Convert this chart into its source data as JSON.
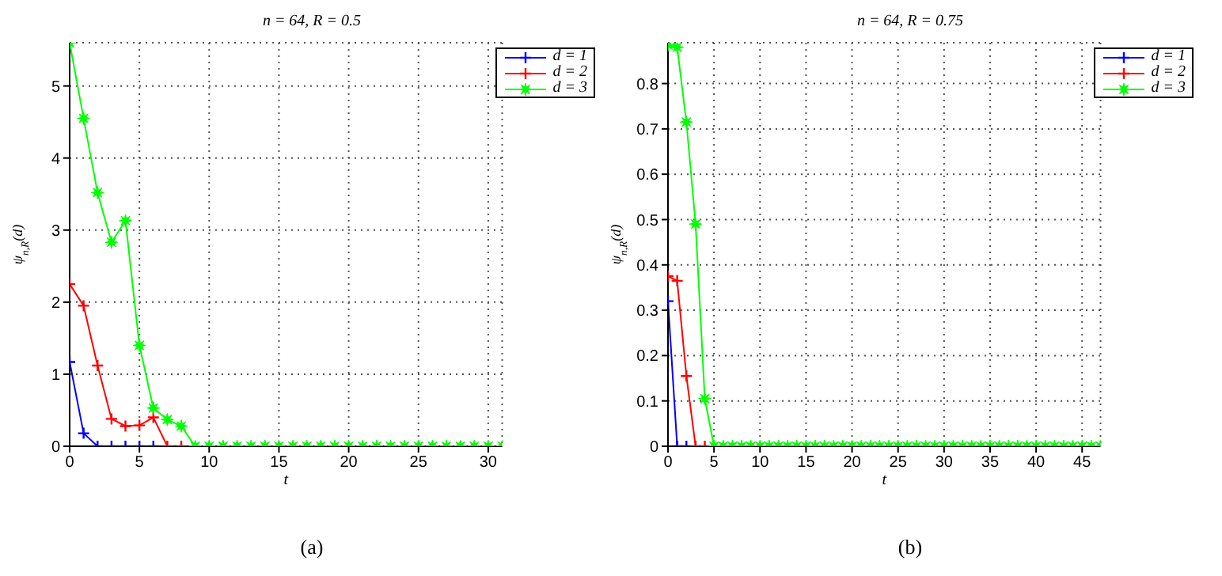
{
  "chart_data": [
    {
      "type": "line",
      "title": "n = 64, R = 0.5",
      "xlabel": "t",
      "ylabel": "ψ$_{n,R}$(d)",
      "x": [
        0,
        1,
        2,
        3,
        4,
        5,
        6,
        7,
        8,
        9,
        10,
        11,
        12,
        13,
        14,
        15,
        16,
        17,
        18,
        19,
        20,
        21,
        22,
        23,
        24,
        25,
        26,
        27,
        28,
        29,
        30,
        31
      ],
      "series": [
        {
          "name": "d = 1",
          "color": "#0000ff",
          "marker": "cross",
          "values": [
            1.17,
            0.18,
            0,
            0,
            0,
            0,
            0,
            null,
            null,
            null,
            null,
            null,
            null,
            null,
            null,
            null,
            null,
            null,
            null,
            null,
            null,
            null,
            null,
            null,
            null,
            null,
            null,
            null,
            null,
            null,
            null,
            null
          ]
        },
        {
          "name": "d = 2",
          "color": "#ff0000",
          "marker": "cross",
          "values": [
            2.25,
            1.95,
            1.12,
            0.38,
            0.28,
            0.29,
            0.4,
            0,
            0,
            null,
            null,
            null,
            null,
            null,
            null,
            null,
            null,
            null,
            null,
            null,
            null,
            null,
            null,
            null,
            null,
            null,
            null,
            null,
            null,
            null,
            null,
            null
          ]
        },
        {
          "name": "d = 3",
          "color": "#00ff00",
          "marker": "star",
          "values": [
            5.6,
            4.55,
            3.52,
            2.83,
            3.13,
            1.4,
            0.53,
            0.37,
            0.28,
            0,
            0,
            0,
            0,
            0,
            0,
            0,
            0,
            0,
            0,
            0,
            0,
            0,
            0,
            0,
            0,
            0,
            0,
            0,
            0,
            0,
            0,
            0
          ]
        }
      ],
      "xlim": [
        0,
        31
      ],
      "xticks": [
        0,
        5,
        10,
        15,
        20,
        25,
        30
      ],
      "ylim": [
        0,
        5.6
      ],
      "yticks": [
        0,
        1,
        2,
        3,
        4,
        5
      ],
      "grid": true,
      "legend": "top right",
      "annotations": [
        "(a)"
      ]
    },
    {
      "type": "line",
      "title": "n = 64, R = 0.75",
      "xlabel": "t",
      "ylabel": "ψ$_{n,R}$(d)",
      "x": [
        0,
        1,
        2,
        3,
        4,
        5,
        6,
        7,
        8,
        9,
        10,
        11,
        12,
        13,
        14,
        15,
        16,
        17,
        18,
        19,
        20,
        21,
        22,
        23,
        24,
        25,
        26,
        27,
        28,
        29,
        30,
        31,
        32,
        33,
        34,
        35,
        36,
        37,
        38,
        39,
        40,
        41,
        42,
        43,
        44,
        45,
        46,
        47
      ],
      "series": [
        {
          "name": "d = 1",
          "color": "#0000ff",
          "marker": "cross",
          "values": [
            0.32,
            0,
            0,
            null,
            null,
            null,
            null,
            null,
            null,
            null,
            null,
            null,
            null,
            null,
            null,
            null,
            null,
            null,
            null,
            null,
            null,
            null,
            null,
            null,
            null,
            null,
            null,
            null,
            null,
            null,
            null,
            null,
            null,
            null,
            null,
            null,
            null,
            null,
            null,
            null,
            null,
            null,
            null,
            null,
            null,
            null,
            null,
            null
          ]
        },
        {
          "name": "d = 2",
          "color": "#ff0000",
          "marker": "cross",
          "values": [
            0.375,
            0.365,
            0.155,
            0,
            0,
            null,
            null,
            null,
            null,
            null,
            null,
            null,
            null,
            null,
            null,
            null,
            null,
            null,
            null,
            null,
            null,
            null,
            null,
            null,
            null,
            null,
            null,
            null,
            null,
            null,
            null,
            null,
            null,
            null,
            null,
            null,
            null,
            null,
            null,
            null,
            null,
            null,
            null,
            null,
            null,
            null,
            null,
            null
          ]
        },
        {
          "name": "d = 3",
          "color": "#00ff00",
          "marker": "star",
          "values": [
            0.885,
            0.88,
            0.715,
            0.49,
            0.105,
            0,
            0,
            0,
            0,
            0,
            0,
            0,
            0,
            0,
            0,
            0,
            0,
            0,
            0,
            0,
            0,
            0,
            0,
            0,
            0,
            0,
            0,
            0,
            0,
            0,
            0,
            0,
            0,
            0,
            0,
            0,
            0,
            0,
            0,
            0,
            0,
            0,
            0,
            0,
            0,
            0,
            0,
            0
          ]
        }
      ],
      "xlim": [
        0,
        47
      ],
      "xticks": [
        0,
        5,
        10,
        15,
        20,
        25,
        30,
        35,
        40,
        45
      ],
      "ylim": [
        0,
        0.89
      ],
      "yticks": [
        0,
        0.1,
        0.2,
        0.3,
        0.4,
        0.5,
        0.6,
        0.7,
        0.8
      ],
      "grid": true,
      "legend": "top right",
      "annotations": [
        "(b)"
      ]
    }
  ]
}
